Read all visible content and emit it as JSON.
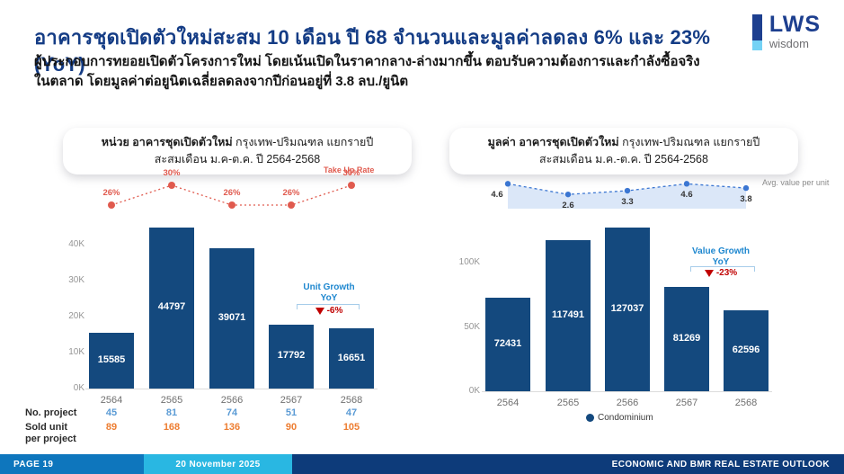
{
  "slide": {
    "title": "อาคารชุดเปิดตัวใหม่สะสม 10 เดือน ปี 68 จำนวนและมูลค่าลดลง 6% และ 23%(YoY)",
    "subtitle_line1": "ผู้ประกอบการทยอยเปิดตัวโครงการใหม่ โดยเน้นเปิดในราคากลาง-ล่างมากขึ้น ตอบรับความต้องการและกำลังซื้อจริง",
    "subtitle_line2": "ในตลาด โดยมูลค่าต่อยูนิตเฉลี่ยลดลงจากปีก่อนอยู่ที่ 3.8 ลบ./ยูนิต",
    "logo": {
      "text": "LWS",
      "sub": "wisdom"
    },
    "footer": {
      "page": "PAGE 19",
      "date": "20 November 2025",
      "right": "ECONOMIC AND BMR REAL ESTATE OUTLOOK"
    }
  },
  "colors": {
    "title_navy": "#143c85",
    "bar": "#14497e",
    "takeup_red": "#e05a4e",
    "growth_red": "#c00000",
    "anno_blue": "#1e87cf",
    "bracket_blue": "#a7cdea",
    "avg_blue": "#3b76d2",
    "avg_fill": "#dbe7f8",
    "row1_blue": "#5b9bd5",
    "row2_orange": "#ed7d31",
    "footer_blue": "#0e76bd",
    "footer_cyan": "#29b7e2",
    "footer_navy": "#0d3b7a",
    "logo_navy": "#1d3f8f",
    "logo_lightblue": "#74d2f5"
  },
  "chart_data": [
    {
      "type": "bar",
      "title_bold": "หน่วย อาคารชุดเปิดตัวใหม่",
      "title_rest": " กรุงเทพ-ปริมณฑล แยกรายปี",
      "title_line2": "สะสมเดือน ม.ค-ต.ค. ปี 2564-2568",
      "categories": [
        "2564",
        "2565",
        "2566",
        "2567",
        "2568"
      ],
      "bars": {
        "name": "Condominium",
        "values": [
          15585,
          44797,
          39071,
          17792,
          16651
        ]
      },
      "line": {
        "name": "Take Up Rate",
        "values": [
          26,
          30,
          26,
          26,
          30
        ],
        "unit": "%"
      },
      "yticks": [
        {
          "v": 0,
          "label": "0K"
        },
        {
          "v": 10000,
          "label": "10K"
        },
        {
          "v": 20000,
          "label": "20K"
        },
        {
          "v": 30000,
          "label": "30K"
        },
        {
          "v": 40000,
          "label": "40K"
        }
      ],
      "ylim": [
        0,
        46000
      ],
      "annotation": {
        "label1": "Unit Growth",
        "label2": "YoY",
        "value": "-6%"
      },
      "table": [
        {
          "label": "No. project",
          "values": [
            45,
            81,
            74,
            51,
            47
          ]
        },
        {
          "label": "Sold unit\nper project",
          "values": [
            89,
            168,
            136,
            90,
            105
          ]
        }
      ]
    },
    {
      "type": "bar",
      "title_bold": "มูลค่า อาคารชุดเปิดตัวใหม่",
      "title_rest": " กรุงเทพ-ปริมณฑล แยกรายปี",
      "title_line2": "สะสมเดือน ม.ค.-ต.ค. ปี 2564-2568",
      "categories": [
        "2564",
        "2565",
        "2566",
        "2567",
        "2568"
      ],
      "bars": {
        "name": "Condominium",
        "values": [
          72431,
          117491,
          127037,
          81269,
          62596
        ]
      },
      "line": {
        "name": "Avg. value per unit",
        "values": [
          4.6,
          2.6,
          3.3,
          4.6,
          3.8
        ],
        "unit": ""
      },
      "yticks": [
        {
          "v": 0,
          "label": "0K"
        },
        {
          "v": 50000,
          "label": "50K"
        },
        {
          "v": 100000,
          "label": "100K"
        }
      ],
      "ylim": [
        0,
        131000
      ],
      "annotation": {
        "label1": "Value Growth",
        "label2": "YoY",
        "value": "-23%"
      },
      "legend": "Condominium"
    }
  ]
}
